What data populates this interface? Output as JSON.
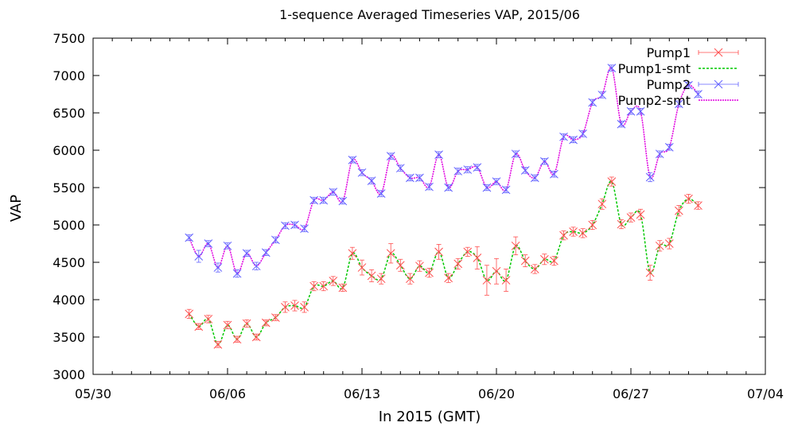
{
  "colors": {
    "pump1": "#ff4c4c",
    "pump1_smt": "#00c800",
    "pump2": "#6060ff",
    "pump2_smt": "#e000e0",
    "axis": "#000000",
    "background": "#ffffff"
  },
  "chart_data": {
    "type": "line",
    "title": "1-sequence Averaged Timeseries VAP, 2015/06",
    "xlabel": "In 2015 (GMT)",
    "ylabel": "VAP",
    "ylim": [
      3000,
      7500
    ],
    "xlim": [
      "2015-05-30",
      "2015-07-04"
    ],
    "yticks": [
      3000,
      3500,
      4000,
      4500,
      5000,
      5500,
      6000,
      6500,
      7000,
      7500
    ],
    "xticks": [
      {
        "date": "2015-05-30",
        "label": "05/30"
      },
      {
        "date": "2015-06-06",
        "label": "06/06"
      },
      {
        "date": "2015-06-13",
        "label": "06/13"
      },
      {
        "date": "2015-06-20",
        "label": "06/20"
      },
      {
        "date": "2015-06-27",
        "label": "06/27"
      },
      {
        "date": "2015-07-04",
        "label": "07/04"
      }
    ],
    "grid": false,
    "legend_position": "top-right",
    "series": [
      {
        "name": "Pump1",
        "style": "points-errorbars",
        "x": [
          "2015-06-04",
          "2015-06-04T12:00",
          "2015-06-05",
          "2015-06-05T12:00",
          "2015-06-06",
          "2015-06-06T12:00",
          "2015-06-07",
          "2015-06-07T12:00",
          "2015-06-08",
          "2015-06-08T12:00",
          "2015-06-09",
          "2015-06-09T12:00",
          "2015-06-10",
          "2015-06-10T12:00",
          "2015-06-11",
          "2015-06-11T12:00",
          "2015-06-12",
          "2015-06-12T12:00",
          "2015-06-13",
          "2015-06-13T12:00",
          "2015-06-14",
          "2015-06-14T12:00",
          "2015-06-15",
          "2015-06-15T12:00",
          "2015-06-16",
          "2015-06-16T12:00",
          "2015-06-17",
          "2015-06-17T12:00",
          "2015-06-18",
          "2015-06-18T12:00",
          "2015-06-19",
          "2015-06-19T12:00",
          "2015-06-20",
          "2015-06-20T12:00",
          "2015-06-21",
          "2015-06-21T12:00",
          "2015-06-22",
          "2015-06-22T12:00",
          "2015-06-23",
          "2015-06-23T12:00",
          "2015-06-24",
          "2015-06-24T12:00",
          "2015-06-25",
          "2015-06-25T12:00",
          "2015-06-26",
          "2015-06-26T12:00",
          "2015-06-27",
          "2015-06-27T12:00",
          "2015-06-28",
          "2015-06-28T12:00",
          "2015-06-29",
          "2015-06-29T12:00",
          "2015-06-30",
          "2015-06-30T12:00",
          "2015-07-01",
          "2015-07-01T12:00",
          "2015-07-02"
        ],
        "y": [
          3810,
          3640,
          3740,
          3400,
          3660,
          3470,
          3680,
          3500,
          3690,
          3760,
          3900,
          3920,
          3900,
          4180,
          4180,
          4250,
          4160,
          4620,
          4430,
          4320,
          4280,
          4620,
          4460,
          4280,
          4450,
          4360,
          4640,
          4290,
          4480,
          4640,
          4560,
          4260,
          4380,
          4260,
          4720,
          4520,
          4410,
          4540,
          4520,
          4860,
          4910,
          4890,
          5000,
          5280,
          5580,
          5010,
          5100,
          5140,
          4360,
          4720,
          4750,
          5190,
          5350,
          5260,
          null,
          null,
          null
        ],
        "error": [
          60,
          40,
          50,
          40,
          50,
          40,
          50,
          40,
          40,
          40,
          70,
          70,
          70,
          60,
          60,
          60,
          50,
          80,
          100,
          80,
          70,
          130,
          80,
          70,
          70,
          60,
          100,
          60,
          70,
          60,
          150,
          200,
          170,
          150,
          120,
          80,
          60,
          70,
          60,
          60,
          60,
          60,
          60,
          70,
          60,
          60,
          60,
          70,
          100,
          70,
          70,
          70,
          60,
          50,
          0,
          0,
          0
        ]
      },
      {
        "name": "Pump1-smt",
        "style": "line",
        "x": [],
        "y": []
      },
      {
        "name": "Pump2",
        "style": "points-errorbars",
        "x": [
          "2015-06-04",
          "2015-06-04T12:00",
          "2015-06-05",
          "2015-06-05T12:00",
          "2015-06-06",
          "2015-06-06T12:00",
          "2015-06-07",
          "2015-06-07T12:00",
          "2015-06-08",
          "2015-06-08T12:00",
          "2015-06-09",
          "2015-06-09T12:00",
          "2015-06-10",
          "2015-06-10T12:00",
          "2015-06-11",
          "2015-06-11T12:00",
          "2015-06-12",
          "2015-06-12T12:00",
          "2015-06-13",
          "2015-06-13T12:00",
          "2015-06-14",
          "2015-06-14T12:00",
          "2015-06-15",
          "2015-06-15T12:00",
          "2015-06-16",
          "2015-06-16T12:00",
          "2015-06-17",
          "2015-06-17T12:00",
          "2015-06-18",
          "2015-06-18T12:00",
          "2015-06-19",
          "2015-06-19T12:00",
          "2015-06-20",
          "2015-06-20T12:00",
          "2015-06-21",
          "2015-06-21T12:00",
          "2015-06-22",
          "2015-06-22T12:00",
          "2015-06-23",
          "2015-06-23T12:00",
          "2015-06-24",
          "2015-06-24T12:00",
          "2015-06-25",
          "2015-06-25T12:00",
          "2015-06-26",
          "2015-06-26T12:00",
          "2015-06-27",
          "2015-06-27T12:00",
          "2015-06-28",
          "2015-06-28T12:00",
          "2015-06-29",
          "2015-06-29T12:00",
          "2015-06-30",
          "2015-06-30T12:00",
          "2015-07-01",
          "2015-07-01T12:00",
          "2015-07-02"
        ],
        "y": [
          4830,
          4580,
          4750,
          4430,
          4720,
          4350,
          4620,
          4450,
          4630,
          4800,
          4990,
          5000,
          4950,
          5330,
          5330,
          5440,
          5320,
          5870,
          5700,
          5590,
          5420,
          5920,
          5760,
          5630,
          5630,
          5510,
          5940,
          5500,
          5720,
          5740,
          5770,
          5500,
          5580,
          5470,
          5950,
          5730,
          5630,
          5850,
          5680,
          6180,
          6140,
          6220,
          6640,
          6740,
          7100,
          6350,
          6520,
          6520,
          5640,
          5950,
          6040,
          6620,
          6870,
          6750,
          null,
          null,
          null
        ],
        "error": [
          40,
          80,
          40,
          60,
          40,
          50,
          40,
          50,
          40,
          40,
          40,
          40,
          40,
          40,
          40,
          40,
          40,
          40,
          40,
          40,
          40,
          40,
          40,
          40,
          40,
          40,
          40,
          40,
          40,
          40,
          40,
          40,
          40,
          40,
          40,
          40,
          40,
          40,
          40,
          40,
          40,
          40,
          40,
          40,
          40,
          40,
          40,
          40,
          60,
          40,
          40,
          40,
          40,
          40,
          0,
          0,
          0
        ]
      },
      {
        "name": "Pump2-smt",
        "style": "line",
        "x": [],
        "y": []
      }
    ]
  }
}
